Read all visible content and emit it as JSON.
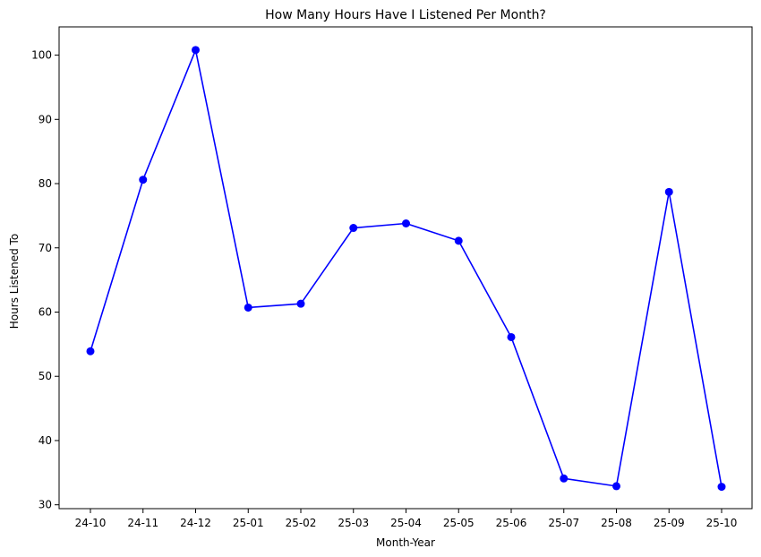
{
  "chart_data": {
    "type": "line",
    "title": "How Many Hours Have I Listened Per Month?",
    "xlabel": "Month-Year",
    "ylabel": "Hours Listened To",
    "categories": [
      "24-10",
      "24-11",
      "24-12",
      "25-01",
      "25-02",
      "25-03",
      "25-04",
      "25-05",
      "25-06",
      "25-07",
      "25-08",
      "25-09",
      "25-10"
    ],
    "series": [
      {
        "values": [
          53.9,
          80.6,
          100.8,
          60.7,
          61.3,
          73.1,
          73.8,
          71.1,
          56.1,
          34.1,
          32.9,
          78.7,
          32.8
        ],
        "color": "#0000ff",
        "marker": "circle"
      }
    ],
    "yticks": [
      30,
      40,
      50,
      60,
      70,
      80,
      90,
      100
    ],
    "ylim": [
      29.4,
      104.4
    ],
    "grid": false,
    "legend": "none"
  }
}
